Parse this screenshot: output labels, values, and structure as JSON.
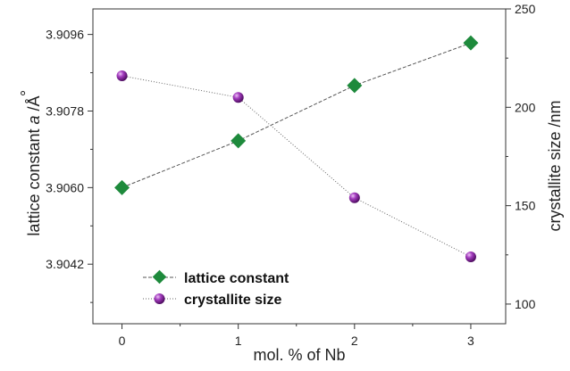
{
  "chart_data": {
    "type": "line",
    "x": [
      0,
      1,
      2,
      3
    ],
    "xticks": [
      "0",
      "1",
      "2",
      "3"
    ],
    "xlabel": "mol. % of Nb",
    "xlim": [
      -0.25,
      3.3
    ],
    "left_axis": {
      "label_main": "lattice constant ",
      "label_var": "a",
      "label_unit": " /",
      "label_symbol": "Å",
      "label_ring": "°",
      "ticks": [
        "3.9042",
        "3.9060",
        "3.9078",
        "3.9096"
      ],
      "tick_values": [
        3.9042,
        3.906,
        3.9078,
        3.9096
      ],
      "ylim": [
        3.9028,
        3.9102
      ]
    },
    "right_axis": {
      "label": "crystallite size /nm",
      "ticks": [
        "100",
        "150",
        "200",
        "250"
      ],
      "tick_values": [
        100,
        150,
        200,
        250
      ],
      "ylim": [
        90,
        250
      ]
    },
    "series": [
      {
        "name": "lattice constant",
        "axis": "left",
        "values": [
          3.906,
          3.9071,
          3.9084,
          3.9094
        ],
        "color": "#1e8a3c",
        "marker": "diamond",
        "line": "dashed"
      },
      {
        "name": "crystallite size",
        "axis": "right",
        "values": [
          216,
          205,
          154,
          124
        ],
        "color": "#8a2aa0",
        "marker": "sphere",
        "line": "dotted"
      }
    ],
    "legend": "bottom-left",
    "grid": false
  }
}
